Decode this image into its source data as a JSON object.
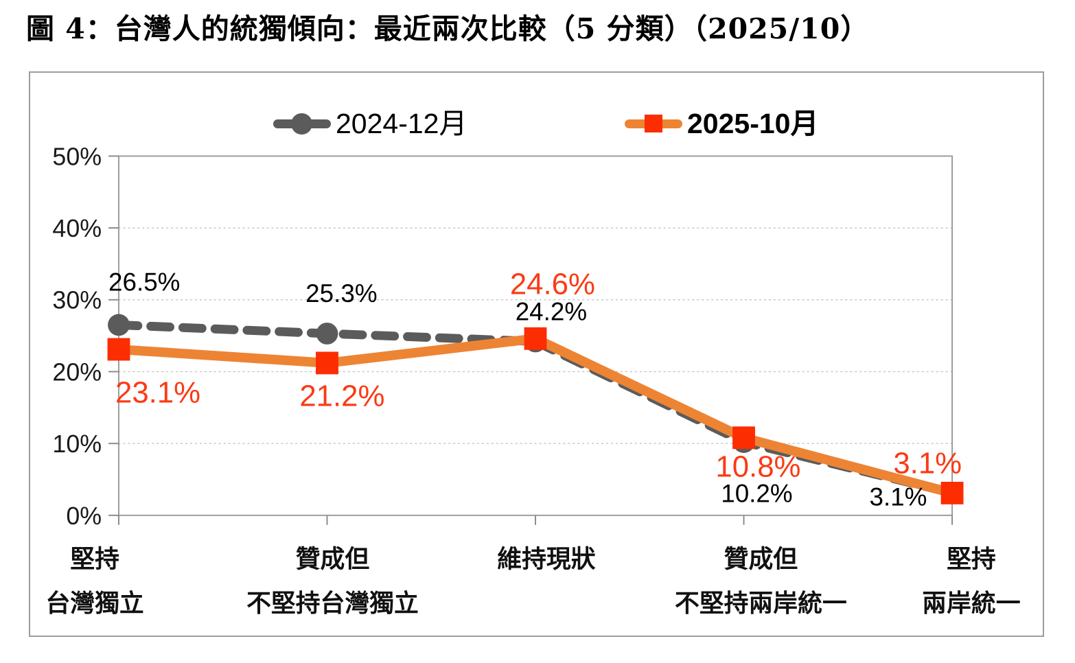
{
  "title": "圖 4：台灣人的統獨傾向：最近兩次比較（5 分類）（2025/10）",
  "colors": {
    "gray_series": "#5B5B5B",
    "orange_line": "#ED8434",
    "red_marker": "#FC2D00",
    "red_label": "#FB3A14",
    "black_label": "#000000",
    "axis_border": "#9C9C9C",
    "tick": "#8C8C8C",
    "gridline": "#C8C8C8",
    "axis_text": "#1A1A1A"
  },
  "legend": {
    "items": [
      {
        "label": "2024-12月",
        "marker": "circle"
      },
      {
        "label": "2025-10月",
        "marker": "square"
      }
    ]
  },
  "chart_data": {
    "type": "line",
    "title": "圖 4：台灣人的統獨傾向：最近兩次比較（5 分類）（2025/10）",
    "categories": [
      [
        "堅持",
        "台灣獨立"
      ],
      [
        "贊成但",
        "不堅持台灣獨立"
      ],
      [
        "維持現狀"
      ],
      [
        "贊成但",
        "不堅持兩岸統一"
      ],
      [
        "堅持",
        "兩岸統一"
      ]
    ],
    "series": [
      {
        "name": "2024-12月",
        "values": [
          26.5,
          25.3,
          24.2,
          10.2,
          3.1
        ],
        "style": "dashed",
        "marker": "circle",
        "color": "#5B5B5B",
        "marker_color": "#5B5B5B",
        "label_color": "#000000"
      },
      {
        "name": "2025-10月",
        "values": [
          23.1,
          21.2,
          24.6,
          10.8,
          3.1
        ],
        "style": "solid",
        "marker": "square",
        "color": "#ED8434",
        "marker_color": "#FC2D00",
        "label_color": "#FB3A14"
      }
    ],
    "ylim": [
      0,
      50
    ],
    "ytick_step": 10,
    "ytick_labels": [
      "0%",
      "10%",
      "20%",
      "30%",
      "40%",
      "50%"
    ],
    "legend_position": "top",
    "grid": "horizontal-dotted"
  }
}
